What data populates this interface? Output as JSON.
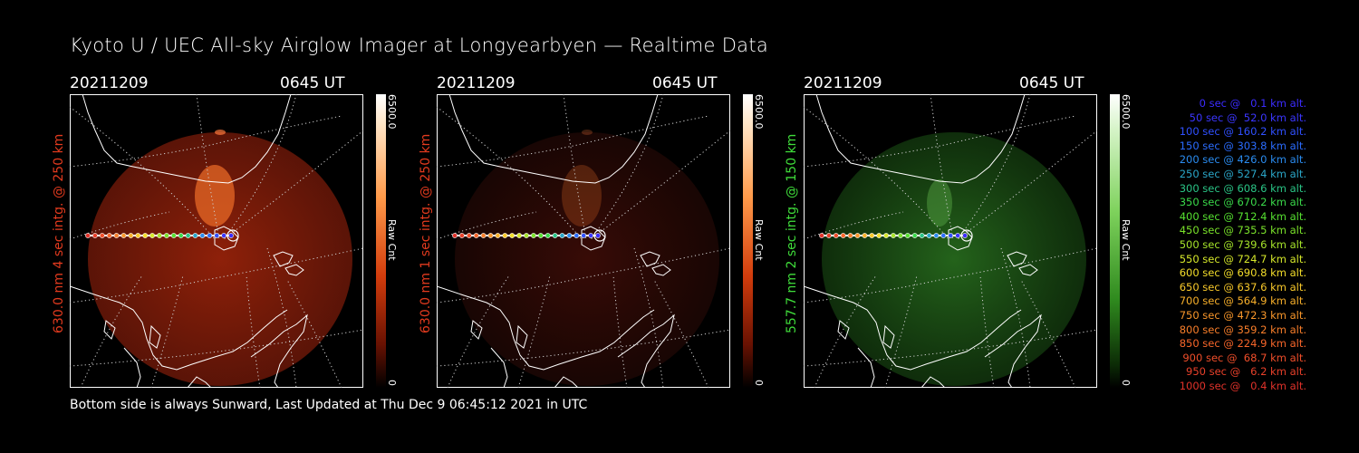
{
  "title": "Kyoto U / UEC All-sky Airglow Imager at Longyearbyen — Realtime Data",
  "footer": "Bottom side is always Sunward, Last Updated at Thu Dec  9 06:45:12 2021 in UTC",
  "panels": [
    {
      "date": "20211209",
      "time": "0645 UT",
      "ylabel": "630.0 nm 4 sec intg. @ 250 km",
      "label_color": "#e23a1e",
      "cbar_max": "6500.0",
      "cbar_min": "0",
      "cbar_unit": "Raw Cnt",
      "tint": "red",
      "intensity": "bright"
    },
    {
      "date": "20211209",
      "time": "0645 UT",
      "ylabel": "630.0 nm 1 sec intg. @ 250 km",
      "label_color": "#e23a1e",
      "cbar_max": "6500.0",
      "cbar_min": "0",
      "cbar_unit": "Raw Cnt",
      "tint": "red",
      "intensity": "dim"
    },
    {
      "date": "20211209",
      "time": "0645 UT",
      "ylabel": "557.7 nm 2 sec intg. @ 150 km",
      "label_color": "#3fdc3a",
      "cbar_max": "6500.0",
      "cbar_min": "0",
      "cbar_unit": "Raw Cnt",
      "tint": "green",
      "intensity": "medium"
    }
  ],
  "legend": [
    {
      "text": "0 sec @   0.1 km alt.",
      "color": "#3b2bff"
    },
    {
      "text": "50 sec @  52.0 km alt.",
      "color": "#3b36ff"
    },
    {
      "text": "100 sec @ 160.2 km alt.",
      "color": "#3050ff"
    },
    {
      "text": "150 sec @ 303.8 km alt.",
      "color": "#2a6cff"
    },
    {
      "text": "200 sec @ 426.0 km alt.",
      "color": "#2a8cf0"
    },
    {
      "text": "250 sec @ 527.4 km alt.",
      "color": "#2aa6c8"
    },
    {
      "text": "300 sec @ 608.6 km alt.",
      "color": "#2ac486"
    },
    {
      "text": "350 sec @ 670.2 km alt.",
      "color": "#3ada4a"
    },
    {
      "text": "400 sec @ 712.4 km alt.",
      "color": "#56e030"
    },
    {
      "text": "450 sec @ 735.5 km alt.",
      "color": "#7ae22a"
    },
    {
      "text": "500 sec @ 739.6 km alt.",
      "color": "#a6e42a"
    },
    {
      "text": "550 sec @ 724.7 km alt.",
      "color": "#d6e82a"
    },
    {
      "text": "600 sec @ 690.8 km alt.",
      "color": "#f4de2a"
    },
    {
      "text": "650 sec @ 637.6 km alt.",
      "color": "#f8c82a"
    },
    {
      "text": "700 sec @ 564.9 km alt.",
      "color": "#f8b02a"
    },
    {
      "text": "750 sec @ 472.3 km alt.",
      "color": "#f8962a"
    },
    {
      "text": "800 sec @ 359.2 km alt.",
      "color": "#f87e2a"
    },
    {
      "text": "850 sec @ 224.9 km alt.",
      "color": "#f8662a"
    },
    {
      "text": "900 sec @  68.7 km alt.",
      "color": "#f04e2a"
    },
    {
      "text": "950 sec @   6.2 km alt.",
      "color": "#e8402a"
    },
    {
      "text": "1000 sec @   0.4 km alt.",
      "color": "#e0322a"
    }
  ]
}
